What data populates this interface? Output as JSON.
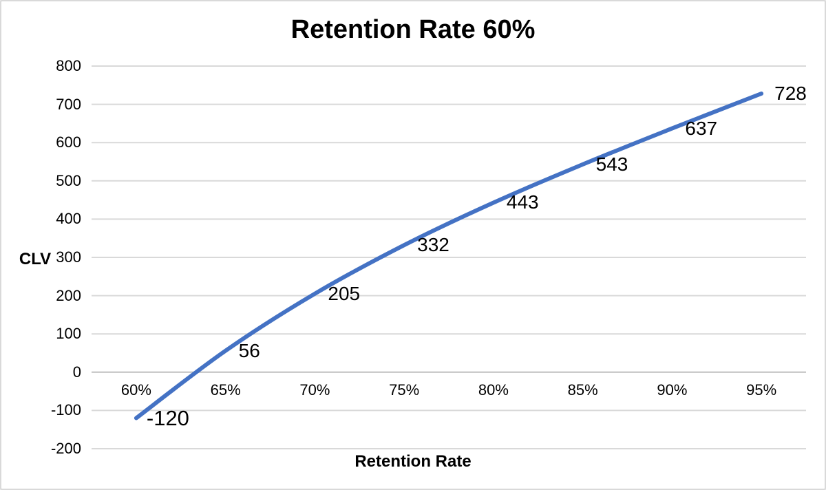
{
  "chart_data": {
    "type": "line",
    "title": "Retention Rate 60%",
    "xlabel": "Retention Rate",
    "ylabel": "CLV",
    "categories": [
      "60%",
      "65%",
      "70%",
      "75%",
      "80%",
      "85%",
      "90%",
      "95%"
    ],
    "series": [
      {
        "name": "CLV",
        "values": [
          -120,
          56,
          205,
          332,
          443,
          543,
          637,
          728
        ]
      }
    ],
    "data_labels": [
      "-120",
      "56",
      "205",
      "332",
      "443",
      "543",
      "637",
      "728"
    ],
    "data_label_position": "right",
    "ylim": [
      -200,
      800
    ],
    "ytick_step": 100,
    "yticks": [
      "800",
      "700",
      "600",
      "500",
      "400",
      "300",
      "200",
      "100",
      "0",
      "-100",
      "-200"
    ],
    "grid": true,
    "legend": false,
    "smoothed": true,
    "colors": {
      "line": "#4472C4",
      "gridline": "#D9D9D9",
      "zero_axis_line": "#BFBFBF",
      "text": "#000000",
      "border": "#D9D9D9",
      "background": "#FFFFFF"
    }
  }
}
